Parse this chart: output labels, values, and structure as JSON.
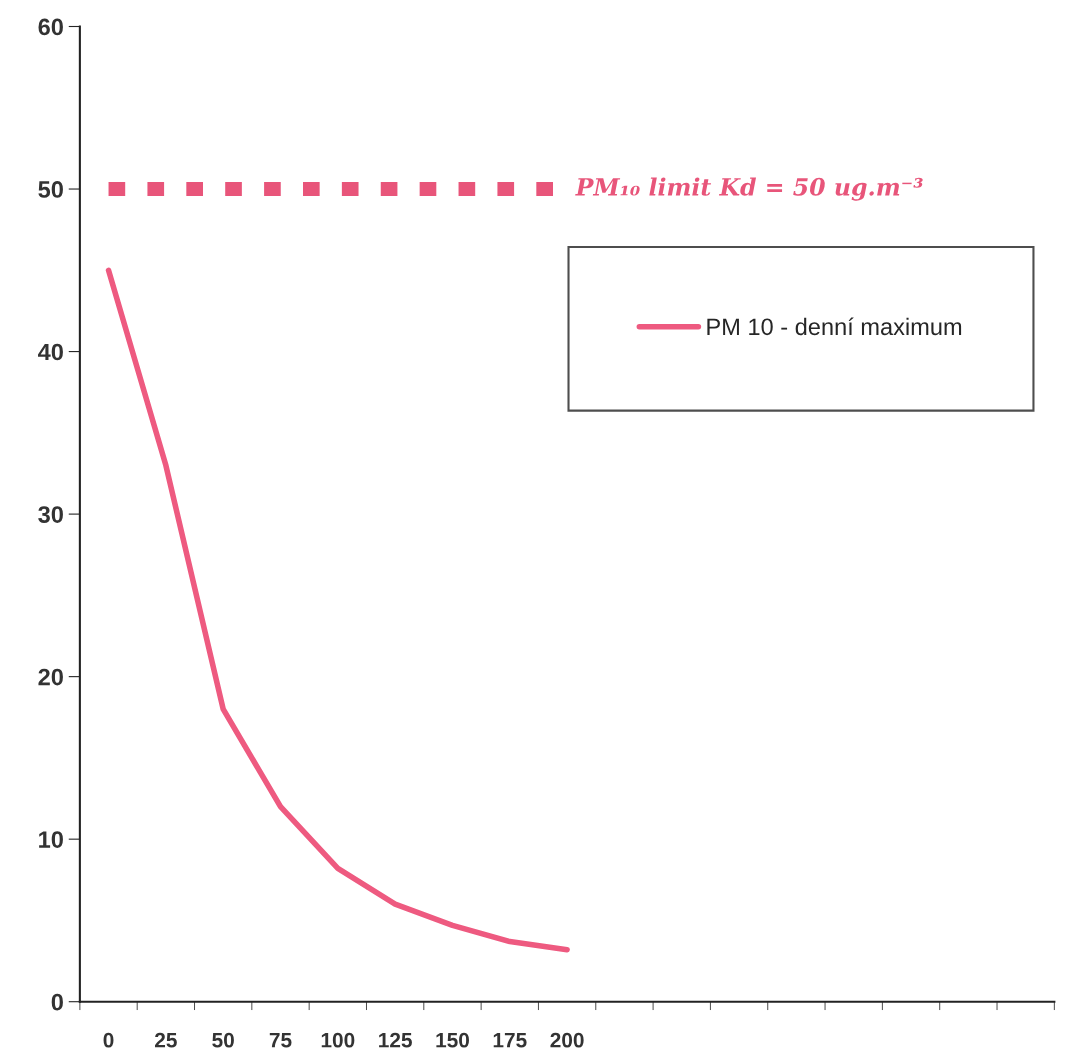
{
  "chart_data": {
    "type": "line",
    "categories": [
      "0",
      "25",
      "50",
      "75",
      "100",
      "125",
      "150",
      "175",
      "200",
      null,
      null,
      null,
      null,
      null,
      null,
      null,
      null
    ],
    "series": [
      {
        "name": "PM 10 - denní maximum",
        "color": "#ee5a80",
        "values": [
          45,
          33,
          18,
          12,
          8.2,
          6,
          4.7,
          3.7,
          3.2,
          null,
          null,
          null,
          null,
          null,
          null,
          null,
          null
        ]
      }
    ],
    "ylim": [
      0,
      60
    ],
    "yticks": [
      0,
      10,
      20,
      30,
      40,
      50,
      60
    ],
    "ref_lines": [
      {
        "axis": "y",
        "value": 50,
        "label": "PM₁₀ limit Kd = 50 ug.m⁻³",
        "color": "#e8557a",
        "line_style": "dashed"
      }
    ],
    "legend": "right",
    "grid": false,
    "marker": "none",
    "line_style": "solid"
  }
}
